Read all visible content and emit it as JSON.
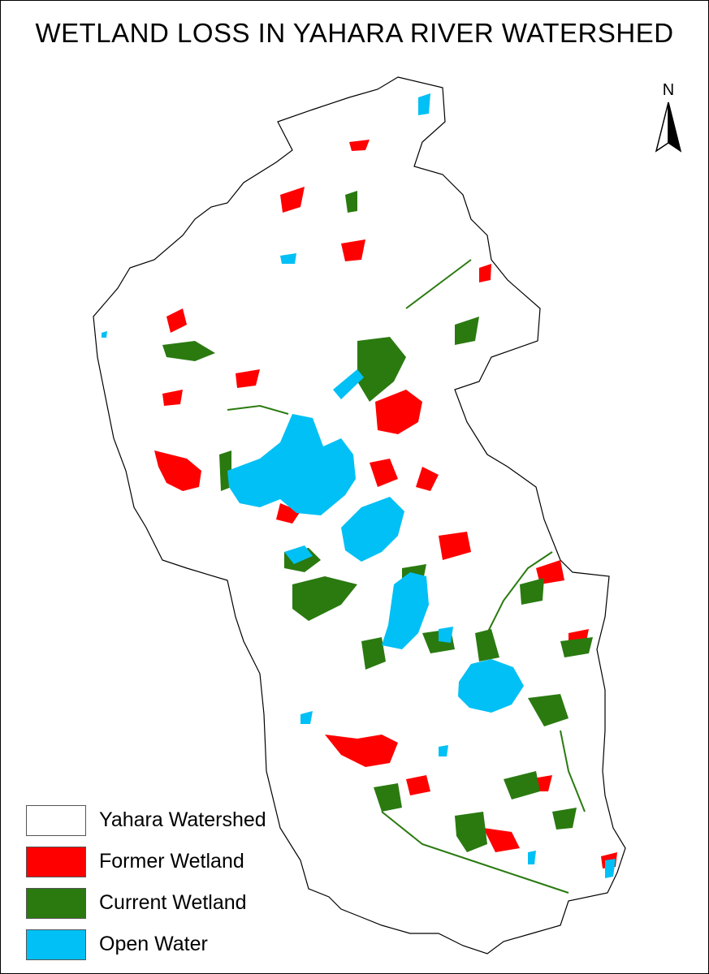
{
  "title": "WETLAND LOSS IN YAHARA RIVER WATERSHED",
  "north_arrow": {
    "label": "N",
    "icon": "north-arrow-icon"
  },
  "colors": {
    "watershed": "#ffffff",
    "former_wetland": "#ff0000",
    "current_wetland": "#2a7a10",
    "open_water": "#00c0f5",
    "outline": "#000000"
  },
  "legend": {
    "items": [
      {
        "label": "Yahara Watershed",
        "color": "#ffffff"
      },
      {
        "label": "Former Wetland",
        "color": "#ff0000"
      },
      {
        "label": "Current Wetland",
        "color": "#2a7a10"
      },
      {
        "label": "Open Water",
        "color": "#00c0f5"
      }
    ]
  }
}
